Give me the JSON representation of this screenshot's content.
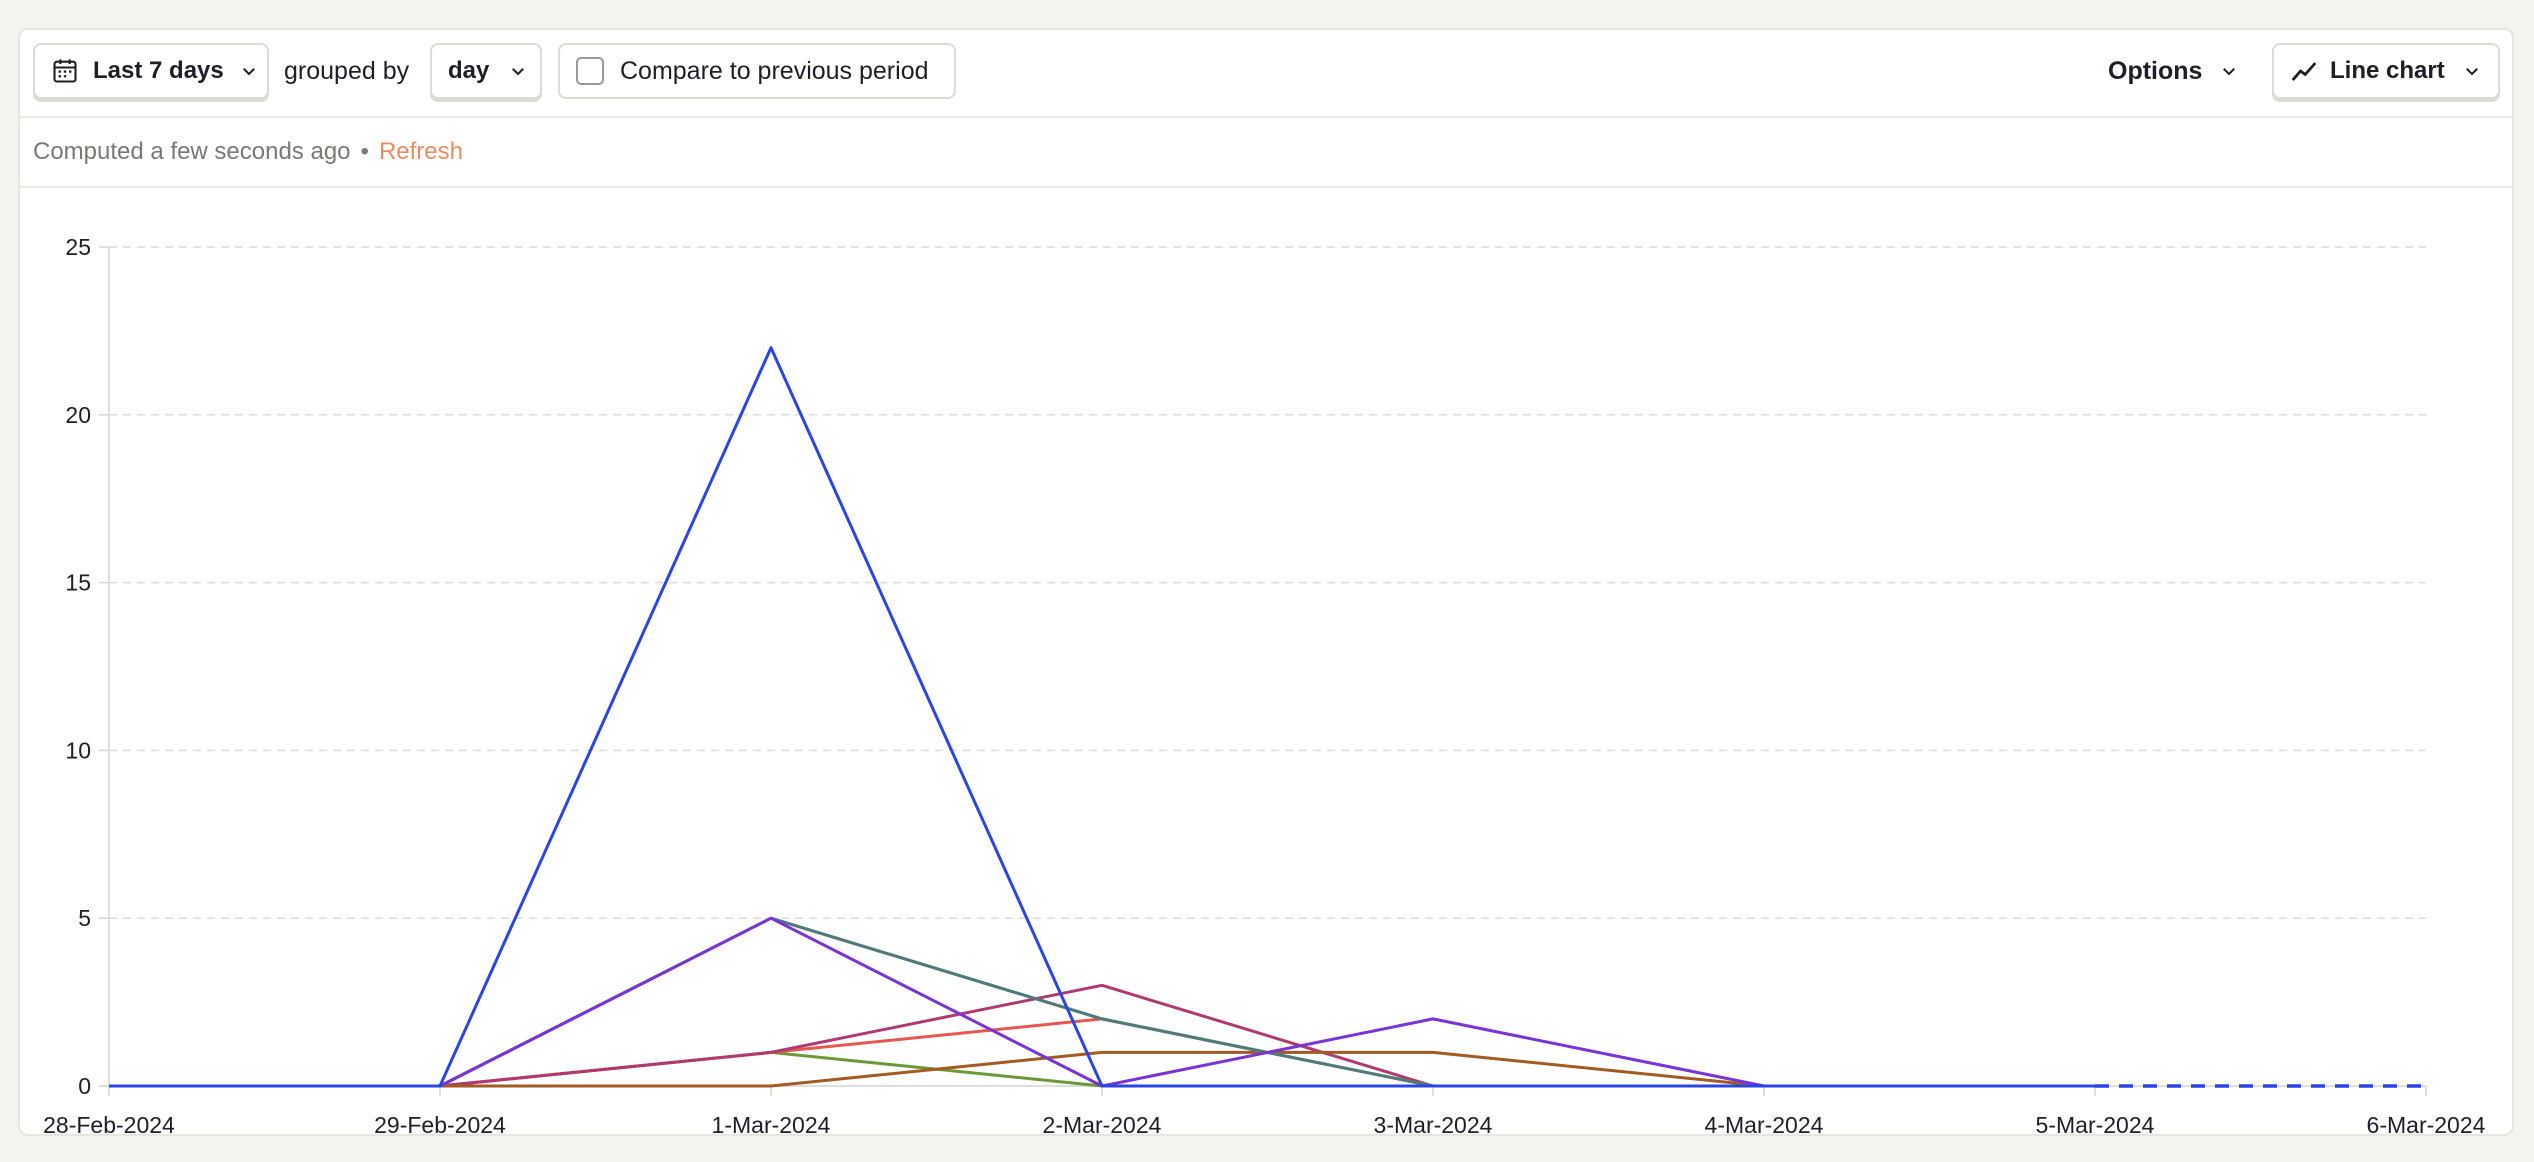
{
  "toolbar": {
    "date_range_label": "Last 7 days",
    "grouped_by_text": "grouped by",
    "interval_label": "day",
    "compare_label": "Compare to previous period",
    "options_label": "Options",
    "chart_type_label": "Line chart"
  },
  "status": {
    "computed_text": "Computed a few seconds ago",
    "separator": "•",
    "refresh_label": "Refresh"
  },
  "icons": {
    "date_icon": "calendar-icon",
    "dropdown_icon": "chevron-down-icon",
    "chart_type_icon": "line-chart-icon"
  },
  "chart_data": {
    "type": "line",
    "title": "",
    "xlabel": "",
    "ylabel": "",
    "categories": [
      "28-Feb-2024",
      "29-Feb-2024",
      "1-Mar-2024",
      "2-Mar-2024",
      "3-Mar-2024",
      "4-Mar-2024",
      "5-Mar-2024",
      "6-Mar-2024"
    ],
    "ylim": [
      0,
      25
    ],
    "yticks": [
      0,
      5,
      10,
      15,
      20,
      25
    ],
    "grid": true,
    "legend": "none",
    "series": [
      {
        "color": "#66809c",
        "values": [
          0,
          0,
          5,
          2,
          0,
          0,
          null,
          null
        ]
      },
      {
        "color": "#6a9a36",
        "values": [
          0,
          0,
          1,
          0,
          null,
          null,
          null,
          null
        ]
      },
      {
        "color": "#e5574f",
        "values": [
          0,
          0,
          1,
          2,
          null,
          null,
          null,
          null
        ]
      },
      {
        "color": "#b03a6f",
        "values": [
          0,
          0,
          1,
          3,
          0,
          null,
          null,
          null
        ]
      },
      {
        "color": "#a35a23",
        "values": [
          0,
          0,
          0,
          1,
          1,
          0,
          null,
          null
        ]
      },
      {
        "color": "#507b79",
        "values": [
          0,
          0,
          5,
          2,
          0,
          null,
          null,
          null
        ]
      },
      {
        "color": "#7a34d6",
        "values": [
          0,
          0,
          5,
          0,
          2,
          0,
          null,
          null
        ]
      },
      {
        "color": "#2a45e6",
        "values": [
          0,
          0,
          22,
          0,
          0,
          0,
          0,
          0
        ],
        "dashed_from_index": 6
      }
    ]
  }
}
